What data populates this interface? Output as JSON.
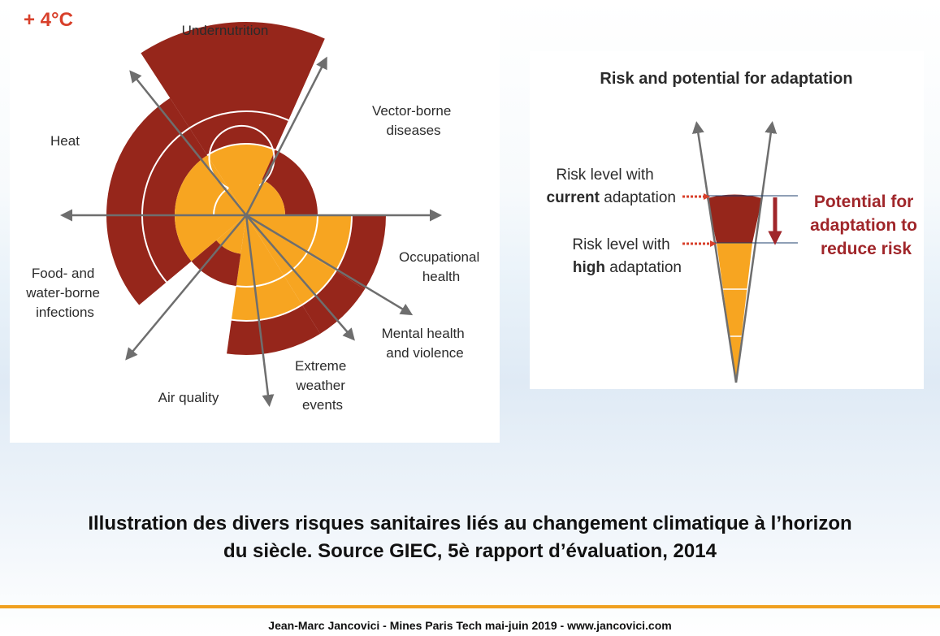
{
  "left_diagram": {
    "temperature_label": "+ 4°C",
    "categories": [
      {
        "key": "undernutrition",
        "label": [
          "Undernutrition"
        ]
      },
      {
        "key": "vector_borne",
        "label": [
          "Vector-borne",
          "diseases"
        ]
      },
      {
        "key": "occupational",
        "label": [
          "Occupational",
          "health"
        ]
      },
      {
        "key": "mental_health",
        "label": [
          "Mental health",
          "and violence"
        ]
      },
      {
        "key": "extreme_weather",
        "label": [
          "Extreme",
          "weather",
          "events"
        ]
      },
      {
        "key": "air_quality",
        "label": [
          "Air quality"
        ]
      },
      {
        "key": "food_water",
        "label": [
          "Food- and",
          "water-borne",
          "infections"
        ]
      },
      {
        "key": "heat",
        "label": [
          "Heat"
        ]
      }
    ]
  },
  "right_diagram": {
    "title": "Risk and potential for adaptation",
    "current_label": {
      "line1": "Risk level with",
      "bold": "current",
      "rest": " adaptation"
    },
    "high_label": {
      "line1": "Risk level with",
      "bold": "high",
      "rest": " adaptation"
    },
    "potential_label": [
      "Potential for",
      "adaptation to",
      "reduce risk"
    ]
  },
  "caption": {
    "line1": "Illustration des divers risques sanitaires liés au changement climatique à l’horizon",
    "line2": "du siècle. Source GIEC, 5è rapport d’évaluation, 2014"
  },
  "footer": "Jean-Marc Jancovici - Mines Paris Tech mai-juin 2019 - www.jancovici.com",
  "colors": {
    "dark_red": "#96261b",
    "orange": "#f7a521",
    "arrow_gray": "#6e6e6e",
    "accent_red": "#a0262a",
    "rule_orange": "#f0a020"
  }
}
